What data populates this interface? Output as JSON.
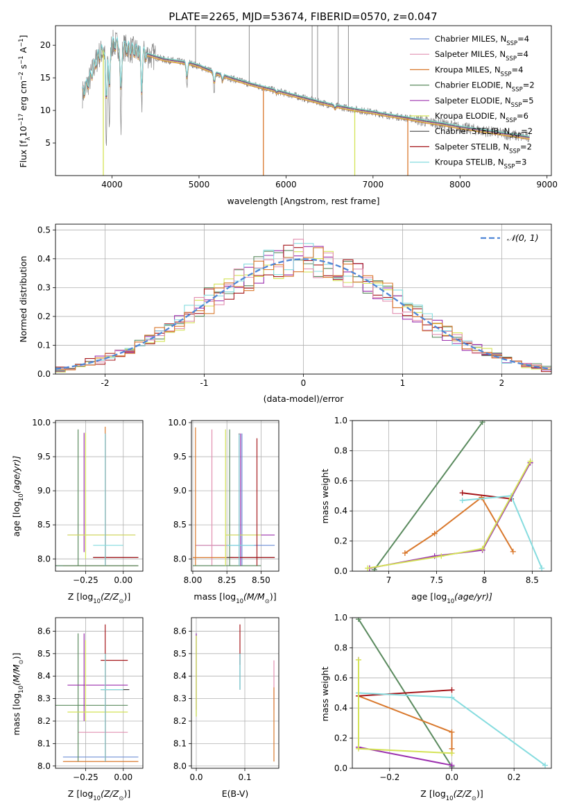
{
  "figure_title": "PLATE=2265, MJD=53674, FIBERID=0570, z=0.047",
  "models": [
    {
      "key": "chabrier_miles",
      "label": "Chabrier MILES, N",
      "nssp": "4",
      "color": "#6e8fd6"
    },
    {
      "key": "salpeter_miles",
      "label": "Salpeter MILES, N",
      "nssp": "4",
      "color": "#e28fb0"
    },
    {
      "key": "kroupa_miles",
      "label": "Kroupa MILES, N",
      "nssp": "4",
      "color": "#d9782c"
    },
    {
      "key": "chabrier_elodie",
      "label": "Chabrier ELODIE, N",
      "nssp": "2",
      "color": "#5a8a5e"
    },
    {
      "key": "salpeter_elodie",
      "label": "Salpeter ELODIE, N",
      "nssp": "5",
      "color": "#9b2fae"
    },
    {
      "key": "kroupa_elodie",
      "label": "Kroupa ELODIE, N",
      "nssp": "6",
      "color": "#d4e356"
    },
    {
      "key": "chabrier_stelib",
      "label": "Chabrier STELIB, N",
      "nssp": "2",
      "color": "#444444"
    },
    {
      "key": "salpeter_stelib",
      "label": "Salpeter STELIB, N",
      "nssp": "2",
      "color": "#a5161a"
    },
    {
      "key": "kroupa_stelib",
      "label": "Kroupa STELIB, N",
      "nssp": "3",
      "color": "#86dcdf"
    }
  ],
  "nssp_subscript": "SSP",
  "chart_data": [
    {
      "id": "spectrum",
      "type": "line",
      "xlabel": "wavelength [Angstrom, rest frame]",
      "ylabel": "Flux [f",
      "ylabel_sub": "λ",
      "ylabel_rest": "10",
      "ylabel_exp": "−17",
      "ylabel_units": " erg cm",
      "ylabel_exp2": "−2",
      "ylabel_units2": " s",
      "ylabel_exp3": "−1",
      "ylabel_units3": " A",
      "ylabel_exp4": "−1",
      "ylabel_end": "]",
      "xlim": [
        3350,
        9050
      ],
      "ylim": [
        0,
        23
      ],
      "xticks": [
        4000,
        5000,
        6000,
        7000,
        8000,
        9000
      ],
      "yticks": [
        5,
        10,
        15,
        20
      ],
      "data_color": "#808080",
      "continuum_x": [
        3660,
        3700,
        3750,
        3800,
        3850,
        3900,
        3950,
        4000,
        4050,
        4100,
        4150,
        4200,
        4300,
        4400,
        4500,
        4600,
        4700,
        4800,
        4900,
        5000,
        5200,
        5400,
        5600,
        5800,
        6000,
        6200,
        6400,
        6600,
        6800,
        7000,
        7200,
        7400,
        7600,
        7800,
        8000,
        8200,
        8400,
        8600,
        8800
      ],
      "continuum_y": [
        12.5,
        13.5,
        15,
        17,
        18.5,
        19.2,
        19.8,
        20.2,
        20.1,
        20.0,
        19.6,
        19.4,
        19.0,
        18.6,
        18.2,
        17.8,
        17.6,
        17.4,
        17.2,
        16.8,
        15.7,
        14.8,
        14.0,
        13.3,
        12.6,
        11.9,
        11.2,
        10.6,
        10.1,
        9.7,
        9.2,
        8.8,
        8.3,
        7.9,
        7.4,
        7.0,
        6.6,
        6.2,
        5.8
      ],
      "dips_x": [
        3934,
        3969,
        4102,
        4340,
        4861,
        5175,
        5270,
        5892,
        6563
      ],
      "dips_y": [
        4,
        8,
        7,
        10,
        13.5,
        13,
        14,
        12.5,
        10
      ],
      "spikes_x": [
        4960,
        5577,
        6300,
        6363,
        6600,
        6717
      ],
      "spikes_y": [
        23,
        23,
        23,
        23,
        23,
        23
      ],
      "model_drop_x": [
        3900,
        5740,
        6790,
        7400
      ],
      "model_drop_color": [
        "#d4e356",
        "#d9782c",
        "#d4e356",
        "#d9782c"
      ]
    },
    {
      "id": "residuals",
      "type": "line",
      "xlabel": "(data-model)/error",
      "ylabel": "Normed distribution",
      "xlim": [
        -2.5,
        2.5
      ],
      "ylim": [
        0,
        0.52
      ],
      "xticks": [
        -2,
        -1,
        0,
        1,
        2
      ],
      "yticks": [
        0.0,
        0.1,
        0.2,
        0.3,
        0.4,
        0.5
      ],
      "legend_label": "𝒩(0, 1)",
      "gauss_color": "#4f86d6",
      "bin_width": 0.1
    },
    {
      "id": "age_vs_Z",
      "type": "scatter",
      "xlabel": "Z [log",
      "xlabel_sub": "10",
      "xlabel_rest": "(Z/Z",
      "xlabel_sun": "⊙",
      "xlabel_end": ")]",
      "ylabel": "age  [log",
      "ylabel_sub": "10",
      "ylabel_rest": "(age/yr)]",
      "xlim": [
        -0.45,
        0.13
      ],
      "ylim": [
        7.82,
        10.03
      ],
      "xticks": [
        -0.25,
        0.0
      ],
      "xtick_labels": [
        "−0.25",
        "0.00"
      ],
      "yticks": [
        8.0,
        8.5,
        9.0,
        9.5,
        10.0
      ]
    },
    {
      "id": "age_vs_mass",
      "type": "scatter",
      "xlabel": "mass [log",
      "xlabel_sub": "10",
      "xlabel_rest": "(M/M",
      "xlabel_sun": "⊙",
      "xlabel_end": ")]",
      "xlim": [
        7.99,
        8.63
      ],
      "ylim": [
        7.82,
        10.03
      ],
      "xticks": [
        8.0,
        8.25,
        8.5
      ],
      "xtick_labels": [
        "8.00",
        "8.25",
        "8.50"
      ],
      "yticks": [
        8.0,
        8.5,
        9.0,
        9.5,
        10.0
      ]
    },
    {
      "id": "weight_vs_age",
      "type": "line",
      "xlabel": "age  [log",
      "xlabel_sub": "10",
      "xlabel_rest": "(age/yr)]",
      "ylabel": "mass weight",
      "xlim": [
        6.62,
        8.7
      ],
      "ylim": [
        0,
        1
      ],
      "xticks": [
        7.0,
        7.5,
        8.0,
        8.5
      ],
      "yticks": [
        0.0,
        0.2,
        0.4,
        0.6,
        0.8,
        1.0
      ],
      "series": [
        {
          "model": "chabrier_elodie",
          "x": [
            6.85,
            7.98
          ],
          "y": [
            0.01,
            0.99
          ]
        },
        {
          "model": "kroupa_miles",
          "x": [
            7.17,
            7.48,
            7.97,
            8.3
          ],
          "y": [
            0.12,
            0.25,
            0.49,
            0.13
          ]
        },
        {
          "model": "salpeter_stelib",
          "x": [
            7.77,
            8.28
          ],
          "y": [
            0.52,
            0.48
          ]
        },
        {
          "model": "kroupa_stelib",
          "x": [
            7.77,
            8.28,
            8.6
          ],
          "y": [
            0.47,
            0.5,
            0.02
          ]
        },
        {
          "model": "salpeter_elodie",
          "x": [
            6.8,
            7.48,
            7.98,
            8.48
          ],
          "y": [
            0.02,
            0.1,
            0.14,
            0.72
          ]
        },
        {
          "model": "kroupa_elodie",
          "x": [
            6.78,
            7.55,
            7.98,
            8.48
          ],
          "y": [
            0.02,
            0.1,
            0.15,
            0.73
          ]
        }
      ]
    },
    {
      "id": "mass_vs_Z",
      "type": "scatter",
      "xlabel": "Z [log",
      "xlabel_sub": "10",
      "xlabel_rest": "(Z/Z",
      "xlabel_sun": "⊙",
      "xlabel_end": ")]",
      "ylabel": "mass [log",
      "ylabel_sub": "10",
      "ylabel_rest": "(M/M",
      "ylabel_sun": "⊙",
      "ylabel_end": ")]",
      "xlim": [
        -0.45,
        0.13
      ],
      "ylim": [
        7.99,
        8.66
      ],
      "xticks": [
        -0.25,
        0.0
      ],
      "xtick_labels": [
        "−0.25",
        "0.00"
      ],
      "yticks": [
        8.0,
        8.1,
        8.2,
        8.3,
        8.4,
        8.5,
        8.6
      ]
    },
    {
      "id": "mass_vs_ebv",
      "type": "scatter",
      "xlabel": "E(B-V)",
      "xlim": [
        -0.01,
        0.17
      ],
      "ylim": [
        7.99,
        8.66
      ],
      "xticks": [
        0.0,
        0.1
      ],
      "xtick_labels": [
        "0.0",
        "0.1"
      ],
      "yticks": [
        8.0,
        8.1,
        8.2,
        8.3,
        8.4,
        8.5,
        8.6
      ]
    },
    {
      "id": "weight_vs_Z",
      "type": "line",
      "xlabel": "Z [log",
      "xlabel_sub": "10",
      "xlabel_rest": "(Z/Z",
      "xlabel_sun": "⊙",
      "xlabel_end": ")]",
      "ylabel": "mass weight",
      "xlim": [
        -0.32,
        0.32
      ],
      "ylim": [
        0,
        1
      ],
      "xticks": [
        -0.2,
        0.0,
        0.2
      ],
      "xtick_labels": [
        "−0.2",
        "0.0",
        "0.2"
      ],
      "yticks": [
        0.0,
        0.2,
        0.4,
        0.6,
        0.8,
        1.0
      ],
      "series": [
        {
          "model": "chabrier_elodie",
          "x": [
            -0.3,
            0.0
          ],
          "y": [
            0.99,
            0.01
          ]
        },
        {
          "model": "kroupa_miles",
          "x": [
            -0.3,
            0.0,
            0.0,
            0.0
          ],
          "y": [
            0.48,
            0.24,
            0.13,
            0.1
          ]
        },
        {
          "model": "salpeter_stelib",
          "x": [
            -0.3,
            0.0
          ],
          "y": [
            0.48,
            0.52
          ]
        },
        {
          "model": "kroupa_stelib",
          "x": [
            -0.3,
            0.0,
            0.3
          ],
          "y": [
            0.5,
            0.47,
            0.02
          ]
        },
        {
          "model": "salpeter_elodie",
          "x": [
            -0.3,
            -0.3,
            0.0
          ],
          "y": [
            0.72,
            0.14,
            0.02
          ]
        },
        {
          "model": "kroupa_elodie",
          "x": [
            -0.3,
            -0.3,
            0.0
          ],
          "y": [
            0.72,
            0.13,
            0.1
          ]
        }
      ]
    }
  ],
  "errorbars": {
    "age_vs_Z": [
      {
        "model": "chabrier_miles",
        "x": -0.12,
        "y": 7.9,
        "xl": -0.45,
        "xh": 0.1,
        "yl": 7.9,
        "yh": 9.84
      },
      {
        "model": "salpeter_miles",
        "x": -0.12,
        "y": 8.02,
        "xl": -0.2,
        "xh": 0.05,
        "yl": 7.9,
        "yh": 9.84
      },
      {
        "model": "kroupa_miles",
        "x": -0.12,
        "y": 7.9,
        "xl": -0.4,
        "xh": 0.1,
        "yl": 7.9,
        "yh": 9.94
      },
      {
        "model": "chabrier_elodie",
        "x": -0.3,
        "y": 7.9,
        "xl": -0.45,
        "xh": 0.1,
        "yl": 7.9,
        "yh": 9.9
      },
      {
        "model": "salpeter_elodie",
        "x": -0.26,
        "y": 8.35,
        "xl": -0.37,
        "xh": 0.08,
        "yl": 8.1,
        "yh": 9.85
      },
      {
        "model": "kroupa_elodie",
        "x": -0.25,
        "y": 8.35,
        "xl": -0.37,
        "xh": 0.08,
        "yl": 8.0,
        "yh": 9.85
      },
      {
        "model": "chabrier_stelib",
        "x": -0.12,
        "y": 8.02,
        "xl": -0.2,
        "xh": 0.1,
        "yl": 7.9,
        "yh": 9.82
      },
      {
        "model": "salpeter_stelib",
        "x": -0.12,
        "y": 8.02,
        "xl": -0.2,
        "xh": 0.1,
        "yl": 7.9,
        "yh": 9.84
      },
      {
        "model": "kroupa_stelib",
        "x": -0.12,
        "y": 8.2,
        "xl": -0.2,
        "xh": 0.0,
        "yl": 7.9,
        "yh": 9.84
      }
    ],
    "age_vs_mass": [
      {
        "model": "chabrier_miles",
        "x": 8.36,
        "y": 8.2,
        "xl": 8.02,
        "xh": 8.6,
        "yl": 7.9,
        "yh": 9.84
      },
      {
        "model": "salpeter_miles",
        "x": 8.14,
        "y": 8.2,
        "xl": 8.02,
        "xh": 8.25,
        "yl": 7.9,
        "yh": 9.9
      },
      {
        "model": "kroupa_miles",
        "x": 8.02,
        "y": 8.02,
        "xl": 8.0,
        "xh": 8.3,
        "yl": 7.9,
        "yh": 9.93
      },
      {
        "model": "chabrier_elodie",
        "x": 8.27,
        "y": 7.9,
        "xl": 8.0,
        "xh": 8.5,
        "yl": 7.9,
        "yh": 9.9
      },
      {
        "model": "salpeter_elodie",
        "x": 8.35,
        "y": 8.35,
        "xl": 8.27,
        "xh": 8.6,
        "yl": 7.9,
        "yh": 9.84
      },
      {
        "model": "kroupa_elodie",
        "x": 8.24,
        "y": 8.35,
        "xl": 8.24,
        "xh": 8.5,
        "yl": 7.9,
        "yh": 9.9
      },
      {
        "model": "chabrier_stelib",
        "x": 8.34,
        "y": 8.02,
        "xl": 8.25,
        "xh": 8.6,
        "yl": 7.9,
        "yh": 9.84
      },
      {
        "model": "salpeter_stelib",
        "x": 8.47,
        "y": 8.02,
        "xl": 8.27,
        "xh": 8.6,
        "yl": 7.9,
        "yh": 9.77
      },
      {
        "model": "kroupa_stelib",
        "x": 8.34,
        "y": 8.2,
        "xl": 8.25,
        "xh": 8.45,
        "yl": 7.9,
        "yh": 9.83
      }
    ],
    "mass_vs_Z": [
      {
        "model": "chabrier_miles",
        "x": -0.12,
        "y": 8.04,
        "xl": -0.4,
        "xh": 0.1,
        "yl": 8.02,
        "yh": 8.5
      },
      {
        "model": "salpeter_miles",
        "x": -0.12,
        "y": 8.15,
        "xl": -0.3,
        "xh": 0.03,
        "yl": 8.02,
        "yh": 8.5
      },
      {
        "model": "kroupa_miles",
        "x": -0.12,
        "y": 8.02,
        "xl": -0.4,
        "xh": 0.1,
        "yl": 8.02,
        "yh": 8.5
      },
      {
        "model": "chabrier_elodie",
        "x": -0.3,
        "y": 8.27,
        "xl": -0.45,
        "xh": 0.03,
        "yl": 8.02,
        "yh": 8.59
      },
      {
        "model": "salpeter_elodie",
        "x": -0.26,
        "y": 8.36,
        "xl": -0.37,
        "xh": 0.03,
        "yl": 8.2,
        "yh": 8.59
      },
      {
        "model": "kroupa_elodie",
        "x": -0.25,
        "y": 8.24,
        "xl": -0.37,
        "xh": 0.03,
        "yl": 8.2,
        "yh": 8.56
      },
      {
        "model": "chabrier_stelib",
        "x": -0.12,
        "y": 8.34,
        "xl": -0.15,
        "xh": 0.04,
        "yl": 8.02,
        "yh": 8.5
      },
      {
        "model": "salpeter_stelib",
        "x": -0.12,
        "y": 8.47,
        "xl": -0.15,
        "xh": 0.03,
        "yl": 8.02,
        "yh": 8.63
      },
      {
        "model": "kroupa_stelib",
        "x": -0.12,
        "y": 8.34,
        "xl": -0.15,
        "xh": 0.0,
        "yl": 8.02,
        "yh": 8.5
      }
    ],
    "mass_vs_ebv": [
      {
        "model": "chabrier_miles",
        "x": 0.09,
        "y": 8.36,
        "xl": 0.09,
        "xh": 0.09,
        "yl": 8.34,
        "yh": 8.5
      },
      {
        "model": "salpeter_miles",
        "x": 0.16,
        "y": 8.36,
        "xl": 0.16,
        "xh": 0.16,
        "yl": 8.25,
        "yh": 8.47
      },
      {
        "model": "kroupa_miles",
        "x": 0.16,
        "y": 8.2,
        "xl": 0.16,
        "xh": 0.16,
        "yl": 8.02,
        "yh": 8.35
      },
      {
        "model": "chabrier_elodie",
        "x": 0.0,
        "y": 8.27,
        "xl": 0.0,
        "xh": 0.0,
        "yl": 8.22,
        "yh": 8.59
      },
      {
        "model": "salpeter_elodie",
        "x": 0.0,
        "y": 8.36,
        "xl": 0.0,
        "xh": 0.0,
        "yl": 8.25,
        "yh": 8.59
      },
      {
        "model": "kroupa_elodie",
        "x": 0.0,
        "y": 8.24,
        "xl": 0.0,
        "xh": 0.0,
        "yl": 8.22,
        "yh": 8.58
      },
      {
        "model": "chabrier_stelib",
        "x": 0.09,
        "y": 8.34,
        "xl": 0.09,
        "xh": 0.09,
        "yl": 8.34,
        "yh": 8.5
      },
      {
        "model": "salpeter_stelib",
        "x": 0.09,
        "y": 8.47,
        "xl": 0.09,
        "xh": 0.09,
        "yl": 8.45,
        "yh": 8.63
      },
      {
        "model": "kroupa_stelib",
        "x": 0.09,
        "y": 8.42,
        "xl": 0.09,
        "xh": 0.09,
        "yl": 8.34,
        "yh": 8.5
      }
    ]
  }
}
